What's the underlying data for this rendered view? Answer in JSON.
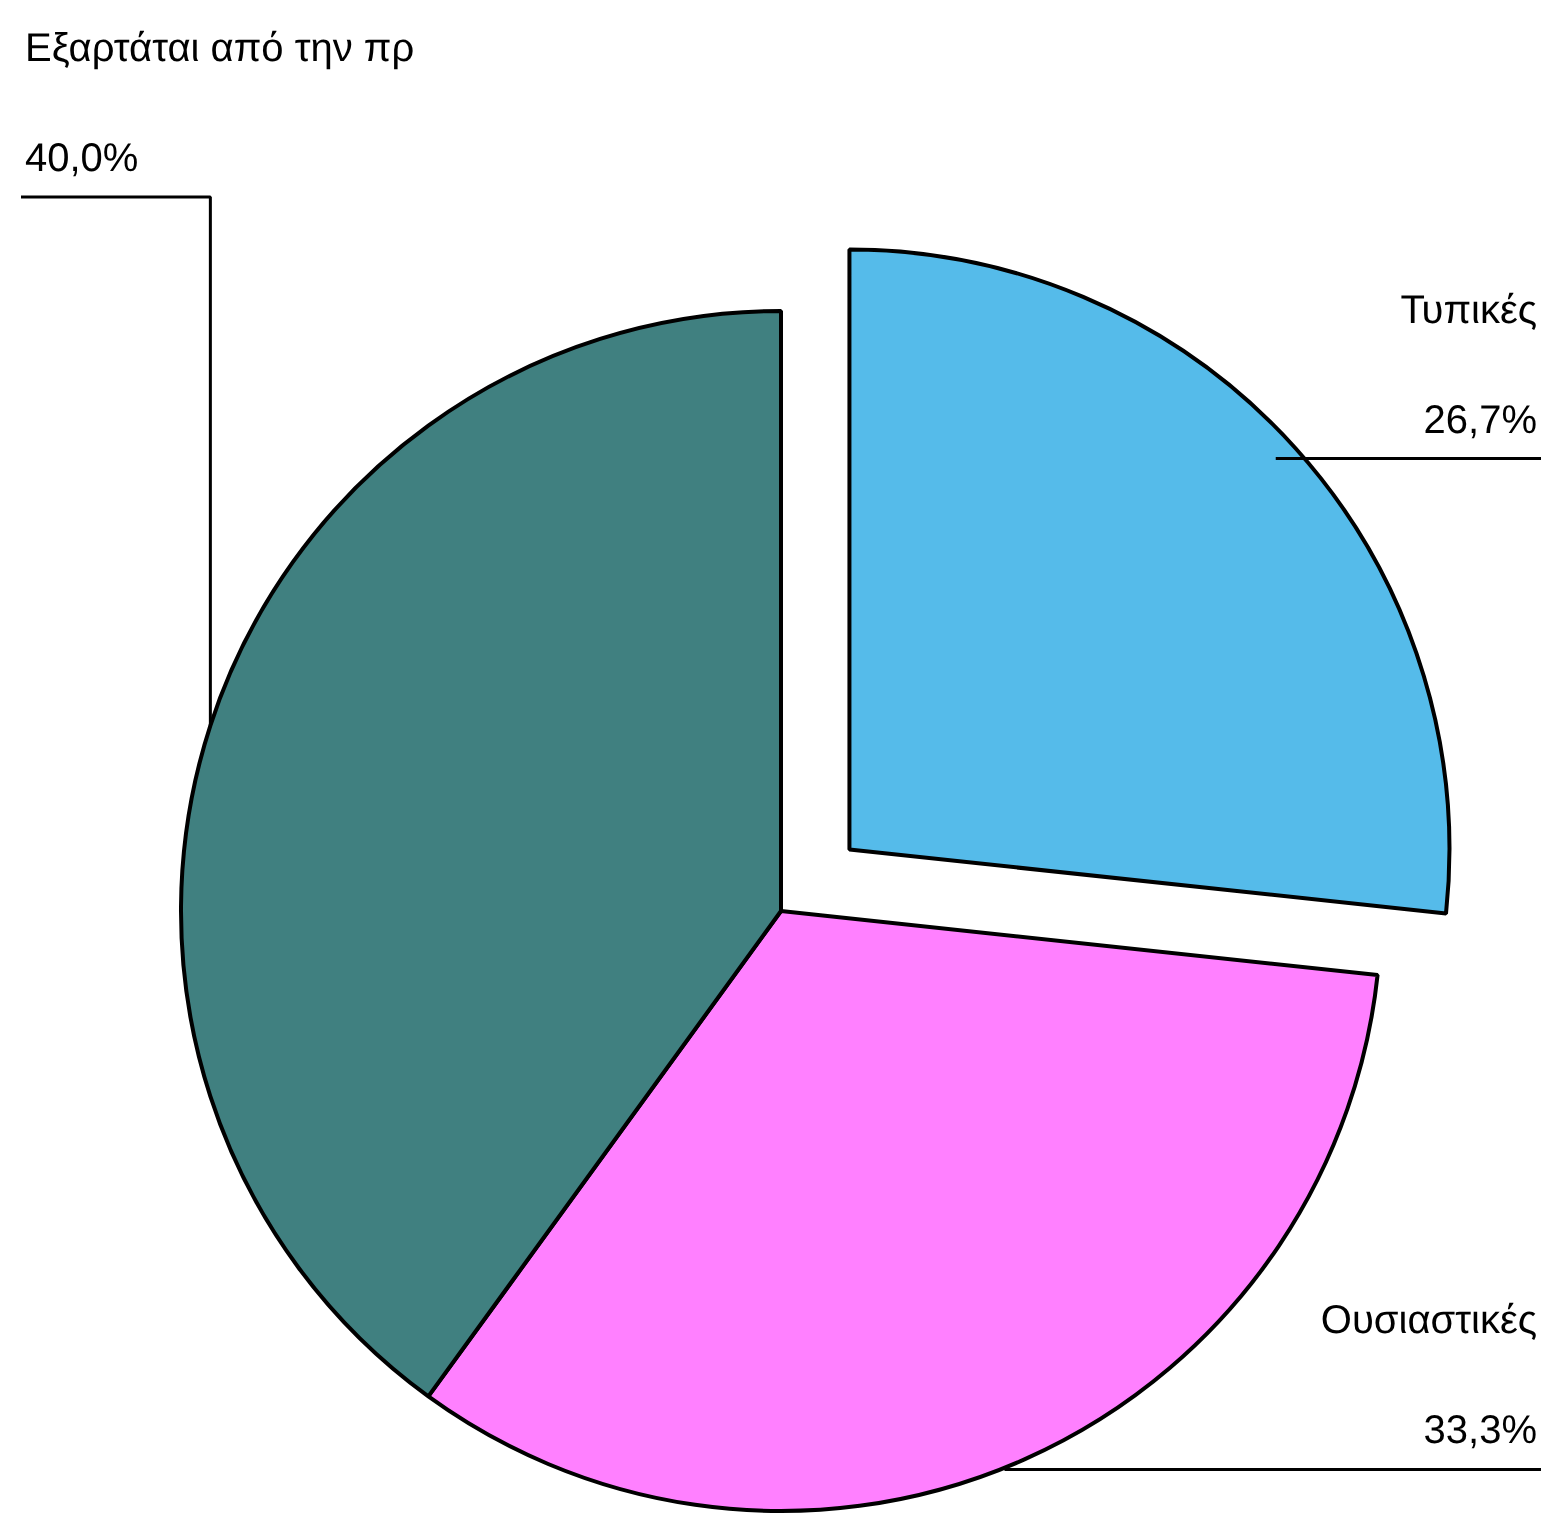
{
  "chart_data": {
    "type": "pie",
    "categories": [
      "Τυπικές",
      "Ουσιαστικές",
      "Εξαρτάται από την πρ"
    ],
    "values": [
      26.7,
      33.3,
      40.0
    ],
    "colors": [
      "#55bbea",
      "#ff80ff",
      "#408080"
    ],
    "value_labels": [
      "26,7%",
      "33,3%",
      "40,0%"
    ]
  }
}
